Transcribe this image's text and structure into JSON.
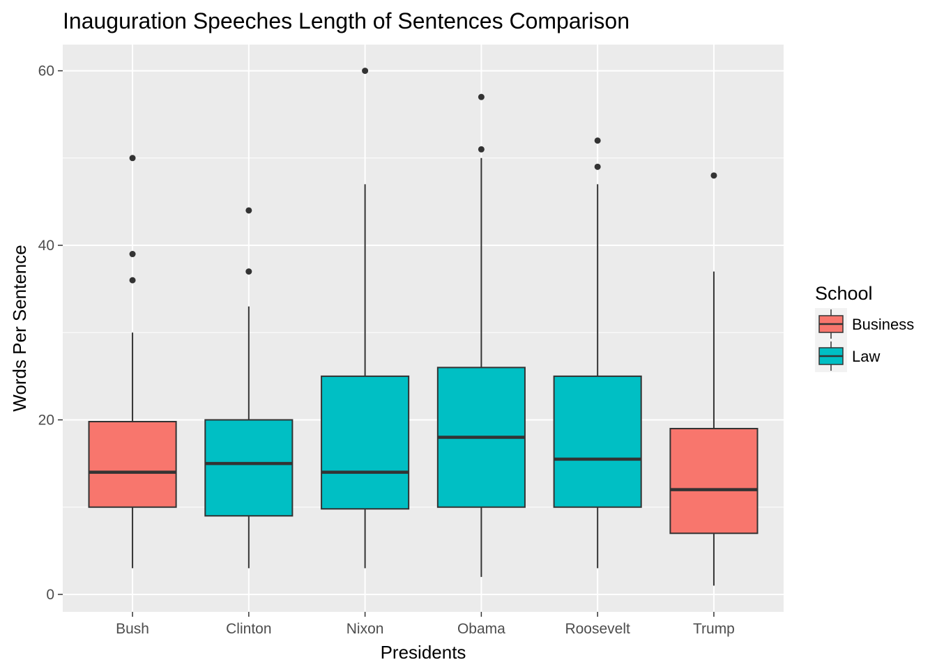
{
  "chart_data": {
    "type": "boxplot",
    "title": "Inauguration Speeches Length of Sentences Comparison",
    "xlabel": "Presidents",
    "ylabel": "Words Per Sentence",
    "ylim": [
      -2,
      63
    ],
    "yticks": [
      0,
      20,
      40,
      60
    ],
    "grid": true,
    "legend": {
      "title": "School",
      "placement": "right",
      "entries": [
        {
          "label": "Business",
          "color": "#F8766D"
        },
        {
          "label": "Law",
          "color": "#00BFC4"
        }
      ]
    },
    "categories": [
      "Bush",
      "Clinton",
      "Nixon",
      "Obama",
      "Roosevelt",
      "Trump"
    ],
    "boxes": [
      {
        "category": "Bush",
        "school": "Business",
        "min": 3,
        "q1": 10,
        "median": 14,
        "q3": 19.8,
        "max": 30,
        "outliers": [
          36,
          39,
          50
        ]
      },
      {
        "category": "Clinton",
        "school": "Law",
        "min": 3,
        "q1": 9,
        "median": 15,
        "q3": 20,
        "max": 33,
        "outliers": [
          37,
          44
        ]
      },
      {
        "category": "Nixon",
        "school": "Law",
        "min": 3,
        "q1": 9.8,
        "median": 14,
        "q3": 25,
        "max": 47,
        "outliers": [
          60
        ]
      },
      {
        "category": "Obama",
        "school": "Law",
        "min": 2,
        "q1": 10,
        "median": 18,
        "q3": 26,
        "max": 50,
        "outliers": [
          51,
          57
        ]
      },
      {
        "category": "Roosevelt",
        "school": "Law",
        "min": 3,
        "q1": 10,
        "median": 15.5,
        "q3": 25,
        "max": 47,
        "outliers": [
          49,
          52
        ]
      },
      {
        "category": "Trump",
        "school": "Business",
        "min": 1,
        "q1": 7,
        "median": 12,
        "q3": 19,
        "max": 37,
        "outliers": [
          48
        ]
      }
    ]
  },
  "colors": {
    "panel_background": "#EBEBEB",
    "grid_line": "#FFFFFF",
    "box_stroke": "#333333",
    "Business": "#F8766D",
    "Law": "#00BFC4"
  }
}
